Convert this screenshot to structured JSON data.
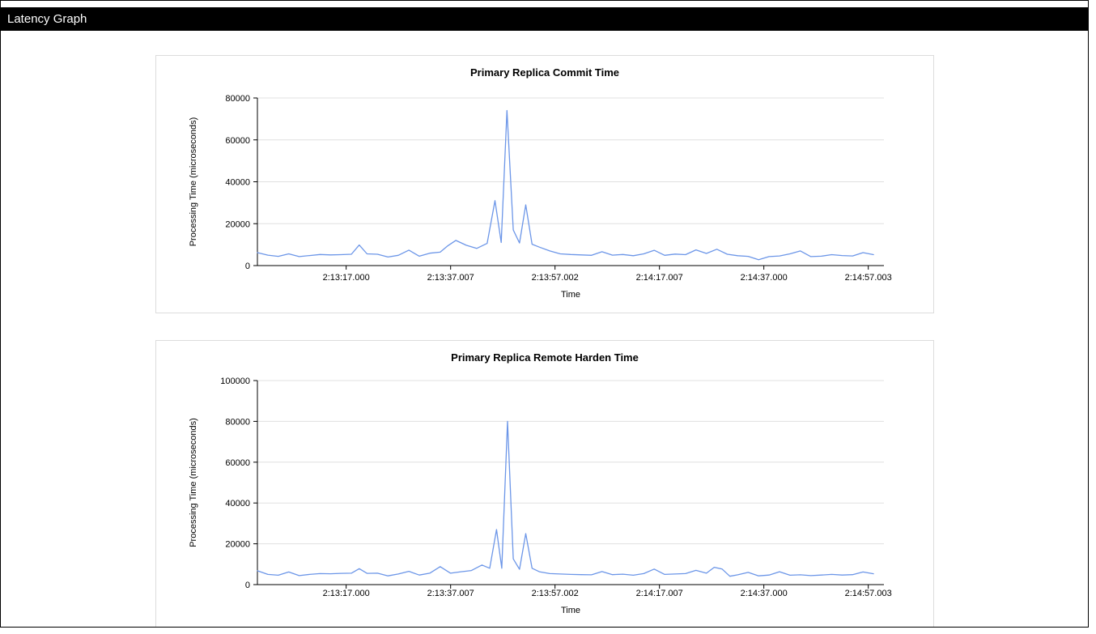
{
  "window": {
    "title": "Latency Graph"
  },
  "chart_data": [
    {
      "type": "line",
      "title": "Primary Replica Commit Time",
      "xlabel": "Time",
      "ylabel": "Processing Time (microseconds)",
      "ylim": [
        0,
        80000
      ],
      "yticks": [
        0,
        20000,
        40000,
        60000,
        80000
      ],
      "xlim": [
        0,
        120
      ],
      "x_unit": "seconds after 2:13:00",
      "xticks": [
        17.0,
        37.007,
        57.002,
        77.007,
        97.0,
        117.003
      ],
      "xtick_labels": [
        "2:13:17.000",
        "2:13:37.007",
        "2:13:57.002",
        "2:14:17.007",
        "2:14:37.000",
        "2:14:57.003"
      ],
      "legend": "none",
      "grid": "horizontal",
      "line_color": "#6c96e8",
      "grid_color": "#e0e0e0",
      "axis_color": "#000000",
      "points": [
        [
          0,
          6200
        ],
        [
          2,
          5000
        ],
        [
          4,
          4400
        ],
        [
          6,
          5600
        ],
        [
          8,
          4300
        ],
        [
          10,
          4800
        ],
        [
          12,
          5300
        ],
        [
          14,
          5100
        ],
        [
          16,
          5200
        ],
        [
          18,
          5400
        ],
        [
          19.5,
          9800
        ],
        [
          21,
          5600
        ],
        [
          23,
          5400
        ],
        [
          25,
          4100
        ],
        [
          27,
          4900
        ],
        [
          29,
          7400
        ],
        [
          31,
          4500
        ],
        [
          33,
          5900
        ],
        [
          35,
          6400
        ],
        [
          36.5,
          9500
        ],
        [
          38,
          12000
        ],
        [
          40,
          9700
        ],
        [
          42,
          8200
        ],
        [
          44,
          10600
        ],
        [
          45.5,
          31000
        ],
        [
          46.7,
          11000
        ],
        [
          47.8,
          74000
        ],
        [
          49,
          17000
        ],
        [
          50.2,
          10800
        ],
        [
          51.4,
          29000
        ],
        [
          52.6,
          10200
        ],
        [
          54,
          8800
        ],
        [
          56,
          7000
        ],
        [
          58,
          5600
        ],
        [
          60,
          5300
        ],
        [
          62,
          5100
        ],
        [
          64,
          4900
        ],
        [
          66,
          6600
        ],
        [
          68,
          5000
        ],
        [
          70,
          5300
        ],
        [
          72,
          4700
        ],
        [
          74,
          5600
        ],
        [
          76,
          7300
        ],
        [
          78,
          4900
        ],
        [
          80,
          5500
        ],
        [
          82,
          5200
        ],
        [
          84,
          7500
        ],
        [
          86,
          5800
        ],
        [
          88,
          7800
        ],
        [
          90,
          5400
        ],
        [
          92,
          4700
        ],
        [
          94,
          4400
        ],
        [
          96,
          2800
        ],
        [
          98,
          4300
        ],
        [
          100,
          4600
        ],
        [
          102,
          5600
        ],
        [
          104,
          7000
        ],
        [
          106,
          4300
        ],
        [
          108,
          4500
        ],
        [
          110,
          5200
        ],
        [
          112,
          4800
        ],
        [
          114,
          4600
        ],
        [
          116,
          6200
        ],
        [
          118,
          5200
        ]
      ]
    },
    {
      "type": "line",
      "title": "Primary Replica Remote Harden Time",
      "xlabel": "Time",
      "ylabel": "Processing Time (microseconds)",
      "ylim": [
        0,
        100000
      ],
      "yticks": [
        0,
        20000,
        40000,
        60000,
        80000,
        100000
      ],
      "xlim": [
        0,
        120
      ],
      "x_unit": "seconds after 2:13:00",
      "xticks": [
        17.0,
        37.007,
        57.002,
        77.007,
        97.0,
        117.003
      ],
      "xtick_labels": [
        "2:13:17.000",
        "2:13:37.007",
        "2:13:57.002",
        "2:14:17.007",
        "2:14:37.000",
        "2:14:57.003"
      ],
      "legend": "none",
      "grid": "horizontal",
      "line_color": "#6c96e8",
      "grid_color": "#e0e0e0",
      "axis_color": "#000000",
      "points": [
        [
          0,
          6800
        ],
        [
          2,
          5000
        ],
        [
          4,
          4600
        ],
        [
          6,
          6200
        ],
        [
          8,
          4400
        ],
        [
          10,
          5000
        ],
        [
          12,
          5400
        ],
        [
          14,
          5300
        ],
        [
          16,
          5500
        ],
        [
          18,
          5600
        ],
        [
          19.5,
          7800
        ],
        [
          21,
          5500
        ],
        [
          23,
          5600
        ],
        [
          25,
          4300
        ],
        [
          27,
          5200
        ],
        [
          29,
          6500
        ],
        [
          31,
          4700
        ],
        [
          33,
          5600
        ],
        [
          35,
          8800
        ],
        [
          37,
          5600
        ],
        [
          39,
          6300
        ],
        [
          41,
          6900
        ],
        [
          43,
          9600
        ],
        [
          44.5,
          8000
        ],
        [
          45.8,
          27000
        ],
        [
          46.8,
          8000
        ],
        [
          47.9,
          80000
        ],
        [
          49,
          12600
        ],
        [
          50.2,
          7500
        ],
        [
          51.4,
          25000
        ],
        [
          52.6,
          8000
        ],
        [
          54,
          6300
        ],
        [
          56,
          5400
        ],
        [
          58,
          5200
        ],
        [
          60,
          5000
        ],
        [
          62,
          4900
        ],
        [
          64,
          4800
        ],
        [
          66,
          6400
        ],
        [
          68,
          4900
        ],
        [
          70,
          5100
        ],
        [
          72,
          4600
        ],
        [
          74,
          5400
        ],
        [
          76,
          7600
        ],
        [
          78,
          5000
        ],
        [
          80,
          5200
        ],
        [
          82,
          5400
        ],
        [
          84,
          7000
        ],
        [
          86,
          5600
        ],
        [
          87.5,
          8500
        ],
        [
          89,
          7600
        ],
        [
          90.5,
          4100
        ],
        [
          92,
          4800
        ],
        [
          94,
          6000
        ],
        [
          96,
          4300
        ],
        [
          98,
          4700
        ],
        [
          100,
          6300
        ],
        [
          102,
          4600
        ],
        [
          104,
          4800
        ],
        [
          106,
          4400
        ],
        [
          108,
          4700
        ],
        [
          110,
          5000
        ],
        [
          112,
          4700
        ],
        [
          114,
          4900
        ],
        [
          116,
          6200
        ],
        [
          118,
          5300
        ]
      ]
    }
  ]
}
